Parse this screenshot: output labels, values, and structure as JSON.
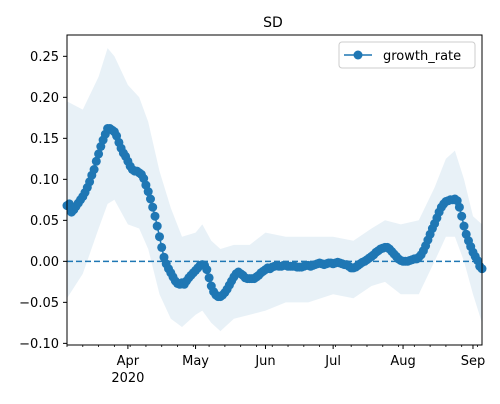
{
  "chart_data": {
    "type": "line",
    "title": "SD",
    "xlabel": "",
    "ylabel": "",
    "x_axis": {
      "type": "date",
      "range": [
        "2020-03-05",
        "2020-09-05"
      ],
      "ticks": [
        {
          "label": "Apr",
          "sub": "2020",
          "date": "2020-04-01"
        },
        {
          "label": "May",
          "sub": "",
          "date": "2020-05-01"
        },
        {
          "label": "Jun",
          "sub": "",
          "date": "2020-06-01"
        },
        {
          "label": "Jul",
          "sub": "",
          "date": "2020-07-01"
        },
        {
          "label": "Aug",
          "sub": "",
          "date": "2020-08-01"
        },
        {
          "label": "Sep",
          "sub": "",
          "date": "2020-09-01"
        }
      ]
    },
    "y_axis": {
      "range": [
        -0.102,
        0.276
      ],
      "ticks": [
        {
          "label": "0.25",
          "value": 0.25
        },
        {
          "label": "0.20",
          "value": 0.2
        },
        {
          "label": "0.15",
          "value": 0.15
        },
        {
          "label": "0.10",
          "value": 0.1
        },
        {
          "label": "0.05",
          "value": 0.05
        },
        {
          "label": "0.00",
          "value": 0.0
        },
        {
          "label": "−0.05",
          "value": -0.05
        },
        {
          "label": "−0.10",
          "value": -0.1
        }
      ]
    },
    "grid": false,
    "legend": {
      "position": "top-right"
    },
    "reference_line": {
      "y": 0.0,
      "style": "dashed",
      "color": "#1f77b4"
    },
    "colors": {
      "series": "#1f77b4",
      "band": "#1f77b4",
      "band_opacity": 0.1
    },
    "series": [
      {
        "name": "growth_rate",
        "marker": "circle",
        "points": [
          [
            "2020-03-05",
            0.068
          ],
          [
            "2020-03-06",
            0.07
          ],
          [
            "2020-03-07",
            0.06
          ],
          [
            "2020-03-08",
            0.063
          ],
          [
            "2020-03-09",
            0.067
          ],
          [
            "2020-03-10",
            0.071
          ],
          [
            "2020-03-11",
            0.075
          ],
          [
            "2020-03-12",
            0.079
          ],
          [
            "2020-03-13",
            0.084
          ],
          [
            "2020-03-14",
            0.09
          ],
          [
            "2020-03-15",
            0.097
          ],
          [
            "2020-03-16",
            0.105
          ],
          [
            "2020-03-17",
            0.112
          ],
          [
            "2020-03-18",
            0.122
          ],
          [
            "2020-03-19",
            0.131
          ],
          [
            "2020-03-20",
            0.14
          ],
          [
            "2020-03-21",
            0.148
          ],
          [
            "2020-03-22",
            0.155
          ],
          [
            "2020-03-23",
            0.162
          ],
          [
            "2020-03-24",
            0.162
          ],
          [
            "2020-03-25",
            0.16
          ],
          [
            "2020-03-26",
            0.158
          ],
          [
            "2020-03-27",
            0.153
          ],
          [
            "2020-03-28",
            0.145
          ],
          [
            "2020-03-29",
            0.138
          ],
          [
            "2020-03-30",
            0.132
          ],
          [
            "2020-03-31",
            0.128
          ],
          [
            "2020-04-01",
            0.122
          ],
          [
            "2020-04-02",
            0.116
          ],
          [
            "2020-04-03",
            0.112
          ],
          [
            "2020-04-04",
            0.11
          ],
          [
            "2020-04-05",
            0.11
          ],
          [
            "2020-04-06",
            0.108
          ],
          [
            "2020-04-07",
            0.106
          ],
          [
            "2020-04-08",
            0.101
          ],
          [
            "2020-04-09",
            0.093
          ],
          [
            "2020-04-10",
            0.085
          ],
          [
            "2020-04-11",
            0.076
          ],
          [
            "2020-04-12",
            0.066
          ],
          [
            "2020-04-13",
            0.055
          ],
          [
            "2020-04-14",
            0.043
          ],
          [
            "2020-04-15",
            0.03
          ],
          [
            "2020-04-16",
            0.017
          ],
          [
            "2020-04-17",
            0.005
          ],
          [
            "2020-04-18",
            -0.003
          ],
          [
            "2020-04-19",
            -0.009
          ],
          [
            "2020-04-20",
            -0.014
          ],
          [
            "2020-04-21",
            -0.019
          ],
          [
            "2020-04-22",
            -0.024
          ],
          [
            "2020-04-23",
            -0.027
          ],
          [
            "2020-04-24",
            -0.028
          ],
          [
            "2020-04-25",
            -0.026
          ],
          [
            "2020-04-26",
            -0.028
          ],
          [
            "2020-04-27",
            -0.024
          ],
          [
            "2020-04-28",
            -0.02
          ],
          [
            "2020-04-29",
            -0.017
          ],
          [
            "2020-04-30",
            -0.014
          ],
          [
            "2020-05-01",
            -0.011
          ],
          [
            "2020-05-02",
            -0.008
          ],
          [
            "2020-05-03",
            -0.005
          ],
          [
            "2020-05-04",
            -0.004
          ],
          [
            "2020-05-05",
            -0.005
          ],
          [
            "2020-05-06",
            -0.01
          ],
          [
            "2020-05-07",
            -0.02
          ],
          [
            "2020-05-08",
            -0.03
          ],
          [
            "2020-05-09",
            -0.037
          ],
          [
            "2020-05-10",
            -0.041
          ],
          [
            "2020-05-11",
            -0.043
          ],
          [
            "2020-05-12",
            -0.043
          ],
          [
            "2020-05-13",
            -0.041
          ],
          [
            "2020-05-14",
            -0.038
          ],
          [
            "2020-05-15",
            -0.034
          ],
          [
            "2020-05-16",
            -0.029
          ],
          [
            "2020-05-17",
            -0.024
          ],
          [
            "2020-05-18",
            -0.019
          ],
          [
            "2020-05-19",
            -0.015
          ],
          [
            "2020-05-20",
            -0.013
          ],
          [
            "2020-05-21",
            -0.015
          ],
          [
            "2020-05-22",
            -0.017
          ],
          [
            "2020-05-23",
            -0.02
          ],
          [
            "2020-05-24",
            -0.021
          ],
          [
            "2020-05-25",
            -0.021
          ],
          [
            "2020-05-26",
            -0.021
          ],
          [
            "2020-05-27",
            -0.021
          ],
          [
            "2020-05-28",
            -0.019
          ],
          [
            "2020-05-29",
            -0.017
          ],
          [
            "2020-05-30",
            -0.014
          ],
          [
            "2020-05-31",
            -0.012
          ],
          [
            "2020-06-01",
            -0.01
          ],
          [
            "2020-06-02",
            -0.008
          ],
          [
            "2020-06-03",
            -0.009
          ],
          [
            "2020-06-04",
            -0.007
          ],
          [
            "2020-06-05",
            -0.006
          ],
          [
            "2020-06-06",
            -0.005
          ],
          [
            "2020-06-07",
            -0.006
          ],
          [
            "2020-06-08",
            -0.006
          ],
          [
            "2020-06-09",
            -0.005
          ],
          [
            "2020-06-10",
            -0.005
          ],
          [
            "2020-06-11",
            -0.006
          ],
          [
            "2020-06-12",
            -0.006
          ],
          [
            "2020-06-13",
            -0.006
          ],
          [
            "2020-06-14",
            -0.006
          ],
          [
            "2020-06-15",
            -0.007
          ],
          [
            "2020-06-16",
            -0.007
          ],
          [
            "2020-06-17",
            -0.007
          ],
          [
            "2020-06-18",
            -0.006
          ],
          [
            "2020-06-19",
            -0.005
          ],
          [
            "2020-06-20",
            -0.005
          ],
          [
            "2020-06-21",
            -0.006
          ],
          [
            "2020-06-22",
            -0.005
          ],
          [
            "2020-06-23",
            -0.004
          ],
          [
            "2020-06-24",
            -0.003
          ],
          [
            "2020-06-25",
            -0.002
          ],
          [
            "2020-06-26",
            -0.003
          ],
          [
            "2020-06-27",
            -0.004
          ],
          [
            "2020-06-28",
            -0.003
          ],
          [
            "2020-06-29",
            -0.002
          ],
          [
            "2020-06-30",
            -0.002
          ],
          [
            "2020-07-01",
            -0.003
          ],
          [
            "2020-07-02",
            -0.002
          ],
          [
            "2020-07-03",
            -0.001
          ],
          [
            "2020-07-04",
            -0.002
          ],
          [
            "2020-07-05",
            -0.003
          ],
          [
            "2020-07-06",
            -0.004
          ],
          [
            "2020-07-07",
            -0.004
          ],
          [
            "2020-07-08",
            -0.006
          ],
          [
            "2020-07-09",
            -0.008
          ],
          [
            "2020-07-10",
            -0.008
          ],
          [
            "2020-07-11",
            -0.007
          ],
          [
            "2020-07-12",
            -0.005
          ],
          [
            "2020-07-13",
            -0.003
          ],
          [
            "2020-07-14",
            -0.001
          ],
          [
            "2020-07-15",
            0.0
          ],
          [
            "2020-07-16",
            0.002
          ],
          [
            "2020-07-17",
            0.004
          ],
          [
            "2020-07-18",
            0.006
          ],
          [
            "2020-07-19",
            0.008
          ],
          [
            "2020-07-20",
            0.011
          ],
          [
            "2020-07-21",
            0.013
          ],
          [
            "2020-07-22",
            0.015
          ],
          [
            "2020-07-23",
            0.016
          ],
          [
            "2020-07-24",
            0.017
          ],
          [
            "2020-07-25",
            0.017
          ],
          [
            "2020-07-26",
            0.015
          ],
          [
            "2020-07-27",
            0.012
          ],
          [
            "2020-07-28",
            0.009
          ],
          [
            "2020-07-29",
            0.006
          ],
          [
            "2020-07-30",
            0.003
          ],
          [
            "2020-07-31",
            0.001
          ],
          [
            "2020-08-01",
            0.0
          ],
          [
            "2020-08-02",
            0.0
          ],
          [
            "2020-08-03",
            0.0
          ],
          [
            "2020-08-04",
            0.001
          ],
          [
            "2020-08-05",
            0.002
          ],
          [
            "2020-08-06",
            0.003
          ],
          [
            "2020-08-07",
            0.003
          ],
          [
            "2020-08-08",
            0.005
          ],
          [
            "2020-08-09",
            0.008
          ],
          [
            "2020-08-10",
            0.013
          ],
          [
            "2020-08-11",
            0.019
          ],
          [
            "2020-08-12",
            0.026
          ],
          [
            "2020-08-13",
            0.033
          ],
          [
            "2020-08-14",
            0.04
          ],
          [
            "2020-08-15",
            0.046
          ],
          [
            "2020-08-16",
            0.053
          ],
          [
            "2020-08-17",
            0.06
          ],
          [
            "2020-08-18",
            0.066
          ],
          [
            "2020-08-19",
            0.07
          ],
          [
            "2020-08-20",
            0.073
          ],
          [
            "2020-08-21",
            0.074
          ],
          [
            "2020-08-22",
            0.075
          ],
          [
            "2020-08-23",
            0.075
          ],
          [
            "2020-08-24",
            0.076
          ],
          [
            "2020-08-25",
            0.074
          ],
          [
            "2020-08-26",
            0.066
          ],
          [
            "2020-08-27",
            0.055
          ],
          [
            "2020-08-28",
            0.043
          ],
          [
            "2020-08-29",
            0.033
          ],
          [
            "2020-08-30",
            0.025
          ],
          [
            "2020-08-31",
            0.018
          ],
          [
            "2020-09-01",
            0.011
          ],
          [
            "2020-09-02",
            0.006
          ],
          [
            "2020-09-03",
            0.001
          ],
          [
            "2020-09-04",
            -0.006
          ],
          [
            "2020-09-05",
            -0.009
          ]
        ]
      }
    ],
    "band": {
      "points": [
        [
          "2020-03-05",
          0.195,
          -0.045
        ],
        [
          "2020-03-12",
          0.185,
          -0.015
        ],
        [
          "2020-03-19",
          0.225,
          0.04
        ],
        [
          "2020-03-23",
          0.26,
          0.07
        ],
        [
          "2020-03-26",
          0.25,
          0.075
        ],
        [
          "2020-04-01",
          0.215,
          0.045
        ],
        [
          "2020-04-06",
          0.2,
          0.04
        ],
        [
          "2020-04-10",
          0.17,
          0.015
        ],
        [
          "2020-04-15",
          0.11,
          -0.04
        ],
        [
          "2020-04-20",
          0.065,
          -0.07
        ],
        [
          "2020-04-25",
          0.03,
          -0.08
        ],
        [
          "2020-05-01",
          0.035,
          -0.065
        ],
        [
          "2020-05-04",
          0.045,
          -0.06
        ],
        [
          "2020-05-08",
          0.025,
          -0.075
        ],
        [
          "2020-05-12",
          0.015,
          -0.085
        ],
        [
          "2020-05-18",
          0.02,
          -0.07
        ],
        [
          "2020-05-25",
          0.02,
          -0.065
        ],
        [
          "2020-06-01",
          0.035,
          -0.06
        ],
        [
          "2020-06-10",
          0.03,
          -0.05
        ],
        [
          "2020-06-20",
          0.03,
          -0.05
        ],
        [
          "2020-07-01",
          0.03,
          -0.04
        ],
        [
          "2020-07-10",
          0.025,
          -0.045
        ],
        [
          "2020-07-18",
          0.04,
          -0.03
        ],
        [
          "2020-07-24",
          0.05,
          -0.025
        ],
        [
          "2020-07-31",
          0.045,
          -0.04
        ],
        [
          "2020-08-08",
          0.05,
          -0.04
        ],
        [
          "2020-08-15",
          0.09,
          0.0
        ],
        [
          "2020-08-20",
          0.125,
          0.03
        ],
        [
          "2020-08-24",
          0.135,
          0.03
        ],
        [
          "2020-08-28",
          0.1,
          0.0
        ],
        [
          "2020-09-01",
          0.055,
          -0.04
        ],
        [
          "2020-09-05",
          0.045,
          -0.075
        ]
      ]
    }
  }
}
